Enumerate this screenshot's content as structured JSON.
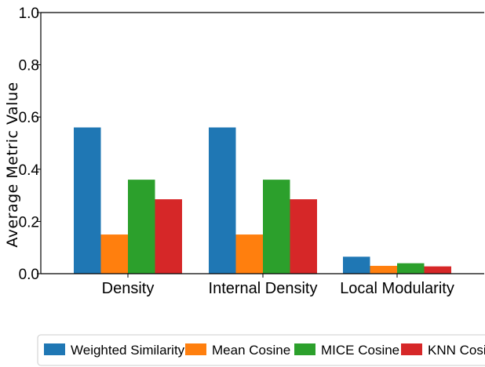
{
  "chart_data": {
    "type": "bar",
    "categories": [
      "Density",
      "Internal Density",
      "Local Modularity"
    ],
    "series": [
      {
        "name": "Weighted Similarity",
        "color": "#1f77b4",
        "values": [
          0.56,
          0.56,
          0.065
        ]
      },
      {
        "name": "Mean Cosine",
        "color": "#ff7f0e",
        "values": [
          0.15,
          0.15,
          0.03
        ]
      },
      {
        "name": "MICE Cosine",
        "color": "#2ca02c",
        "values": [
          0.36,
          0.36,
          0.04
        ]
      },
      {
        "name": "KNN Cosine",
        "color": "#d62728",
        "values": [
          0.285,
          0.285,
          0.028
        ]
      }
    ],
    "title": "",
    "xlabel": "",
    "ylabel": "Average Metric Value",
    "ylim": [
      0,
      1.0
    ],
    "yticks": [
      "0.0",
      "0.2",
      "0.4",
      "0.6",
      "0.8",
      "1.0"
    ],
    "grid": false,
    "legend_position": "bottom"
  }
}
